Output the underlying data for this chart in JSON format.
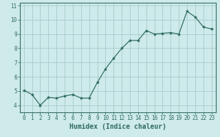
{
  "x": [
    0,
    1,
    2,
    3,
    4,
    5,
    6,
    7,
    8,
    9,
    10,
    11,
    12,
    13,
    14,
    15,
    16,
    17,
    18,
    19,
    20,
    21,
    22,
    23
  ],
  "y": [
    5.05,
    4.75,
    4.0,
    4.55,
    4.5,
    4.65,
    4.75,
    4.5,
    4.5,
    5.6,
    6.55,
    7.3,
    8.0,
    8.55,
    8.55,
    9.25,
    9.0,
    9.05,
    9.1,
    9.0,
    10.6,
    10.2,
    9.5,
    9.35
  ],
  "line_color": "#2e6b5e",
  "marker": "*",
  "marker_size": 3,
  "bg_color": "#ceeaea",
  "grid_color": "#aacfcf",
  "xlabel": "Humidex (Indice chaleur)",
  "xlim": [
    -0.5,
    23.5
  ],
  "ylim": [
    3.5,
    11.2
  ],
  "yticks": [
    4,
    5,
    6,
    7,
    8,
    9,
    10,
    11
  ],
  "xticks": [
    0,
    1,
    2,
    3,
    4,
    5,
    6,
    7,
    8,
    9,
    10,
    11,
    12,
    13,
    14,
    15,
    16,
    17,
    18,
    19,
    20,
    21,
    22,
    23
  ],
  "label_fontsize": 7,
  "tick_fontsize": 5.5
}
